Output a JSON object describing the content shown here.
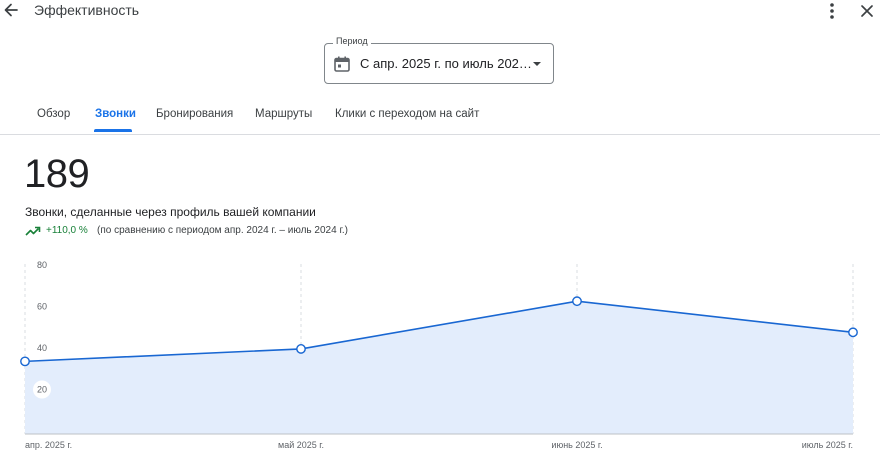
{
  "header": {
    "title": "Эффективность",
    "back_icon": "arrow-back-icon",
    "more_icon": "more-vert-icon",
    "close_icon": "close-icon"
  },
  "period": {
    "label": "Период",
    "value": "С апр. 2025 г. по июль 202…",
    "icon": "calendar-icon"
  },
  "tabs": [
    {
      "label": "Обзор",
      "active": false
    },
    {
      "label": "Звонки",
      "active": true
    },
    {
      "label": "Бронирования",
      "active": false
    },
    {
      "label": "Маршруты",
      "active": false
    },
    {
      "label": "Клики с переходом на сайт",
      "active": false
    }
  ],
  "metric": {
    "value": "189",
    "label": "Звонки, сделанные через профиль вашей компании",
    "change": "+110,0 %",
    "comparison": "(по сравнению с периодом апр. 2024 г. – июль 2024 г.)",
    "trend_icon": "trending-up-icon"
  },
  "colors": {
    "accent": "#1a73e8",
    "positive": "#188038",
    "area_fill": "#e3edfc",
    "line": "#1967d2"
  },
  "chart_data": {
    "type": "area",
    "categories": [
      "апр. 2025 г.",
      "май 2025 г.",
      "июнь 2025 г.",
      "июль 2025 г."
    ],
    "series": [
      {
        "values": [
          35,
          41,
          64,
          49
        ]
      }
    ],
    "y_ticks": [
      20,
      40,
      60,
      80
    ],
    "ylim": [
      0,
      80
    ],
    "grid": "vertical dashed"
  }
}
